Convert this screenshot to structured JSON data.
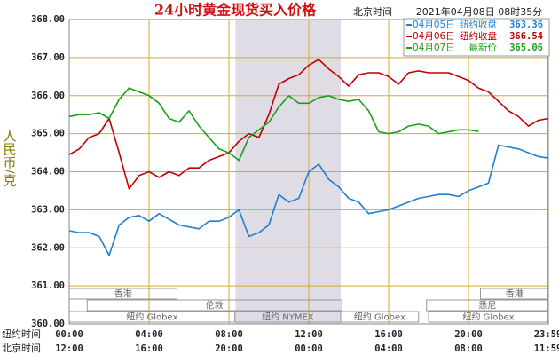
{
  "chart_data": {
    "type": "line",
    "title": "24小时黄金现货买入价格",
    "header_label": "北京时间",
    "timestamp": "2021年04月08日 08时35分",
    "ylabel": "人民币/克",
    "x_row_labels": [
      "纽约时间",
      "北京时间"
    ],
    "xlim": [
      0,
      24
    ],
    "xticks": [
      {
        "value": 0,
        "label": "00:00"
      },
      {
        "value": 4,
        "label": "04:00"
      },
      {
        "value": 8,
        "label": "08:00"
      },
      {
        "value": 12,
        "label": "12:00"
      },
      {
        "value": 16,
        "label": "16:00"
      },
      {
        "value": 20,
        "label": "20:00"
      },
      {
        "value": 23.98,
        "label": "23:59"
      }
    ],
    "xticks_beijing": [
      "12:00",
      "16:00",
      "20:00",
      "00:00",
      "04:00",
      "08:00",
      "11:59"
    ],
    "ylim": [
      360,
      368
    ],
    "yticks": [
      {
        "value": 360,
        "label": "360.00"
      },
      {
        "value": 361,
        "label": "361.00"
      },
      {
        "value": 362,
        "label": "362.00"
      },
      {
        "value": 363,
        "label": "363.00"
      },
      {
        "value": 364,
        "label": "364.00"
      },
      {
        "value": 365,
        "label": "365.00"
      },
      {
        "value": 366,
        "label": "366.00"
      },
      {
        "value": 367,
        "label": "367.00"
      },
      {
        "value": 368,
        "label": "368.00"
      }
    ],
    "grid": true,
    "highlight": [
      8.33,
      13.6
    ],
    "x": [
      0,
      0.5,
      1,
      1.5,
      2,
      2.5,
      3,
      3.5,
      4,
      4.5,
      5,
      5.5,
      6,
      6.5,
      7,
      7.5,
      8,
      8.5,
      9,
      9.5,
      10,
      10.5,
      11,
      11.5,
      12,
      12.5,
      13,
      13.5,
      14,
      14.5,
      15,
      15.5,
      16,
      16.5,
      17,
      17.5,
      18,
      18.5,
      19,
      19.5,
      20,
      20.5,
      21,
      21.5,
      22,
      22.5,
      23,
      23.5,
      24
    ],
    "series": [
      {
        "name": "04月05日",
        "price_label": "纽约收盘",
        "price": 363.36,
        "color": "#1e7fd0",
        "values": [
          362.45,
          362.4,
          362.4,
          362.3,
          361.8,
          362.6,
          362.8,
          362.85,
          362.7,
          362.9,
          362.75,
          362.6,
          362.55,
          362.5,
          362.7,
          362.7,
          362.8,
          363.0,
          362.3,
          362.4,
          362.6,
          363.4,
          363.2,
          363.3,
          364.0,
          364.2,
          363.8,
          363.6,
          363.3,
          363.2,
          362.9,
          362.95,
          363.0,
          363.1,
          363.2,
          363.3,
          363.35,
          363.4,
          363.4,
          363.35,
          363.5,
          363.6,
          363.7,
          364.7,
          364.65,
          364.6,
          364.5,
          364.4,
          364.36
        ]
      },
      {
        "name": "04月06日",
        "price_label": "纽约收盘",
        "price": 366.54,
        "color": "#c00000",
        "values": [
          364.45,
          364.6,
          364.9,
          365.0,
          365.4,
          364.5,
          363.55,
          363.9,
          364.0,
          363.85,
          364.0,
          363.9,
          364.1,
          364.1,
          364.3,
          364.4,
          364.5,
          364.8,
          365.0,
          364.9,
          365.5,
          366.3,
          366.45,
          366.55,
          366.8,
          366.95,
          366.7,
          366.5,
          366.25,
          366.55,
          366.6,
          366.6,
          366.5,
          366.3,
          366.6,
          366.65,
          366.6,
          366.6,
          366.6,
          366.5,
          366.4,
          366.2,
          366.1,
          365.85,
          365.6,
          365.45,
          365.2,
          365.35,
          365.4
        ]
      },
      {
        "name": "04月07日",
        "price_label": "最新价",
        "price": 365.06,
        "color": "#18a018",
        "values": [
          365.45,
          365.5,
          365.5,
          365.55,
          365.4,
          365.9,
          366.2,
          366.1,
          366.0,
          365.8,
          365.4,
          365.3,
          365.6,
          365.2,
          364.9,
          364.6,
          364.5,
          364.3,
          364.9,
          365.1,
          365.3,
          365.7,
          366.0,
          365.8,
          365.8,
          365.95,
          366.0,
          365.9,
          365.85,
          365.9,
          365.6,
          365.05,
          365.0,
          365.05,
          365.2,
          365.25,
          365.2,
          365.0,
          365.05,
          365.1,
          365.1,
          365.06,
          null,
          null,
          null,
          null,
          null,
          null,
          null
        ]
      }
    ],
    "sessions": [
      [
        {
          "label": "香港",
          "start": 0,
          "end": 5.4
        },
        {
          "label": "香港",
          "start": 20.6,
          "end": 24
        }
      ],
      [
        {
          "label": "伦敦",
          "start": 0.9,
          "end": 13.65
        },
        {
          "label": "悉尼",
          "start": 17.9,
          "end": 24
        }
      ],
      [
        {
          "label": "纽约 Globex",
          "start": 0,
          "end": 8.3
        },
        {
          "label": "纽约 NYMEX",
          "start": 8.3,
          "end": 13.6
        },
        {
          "label": "纽约 Globex",
          "start": 13.6,
          "end": 17.5
        },
        {
          "label": "纽约 Globex",
          "start": 18,
          "end": 24
        }
      ]
    ]
  }
}
